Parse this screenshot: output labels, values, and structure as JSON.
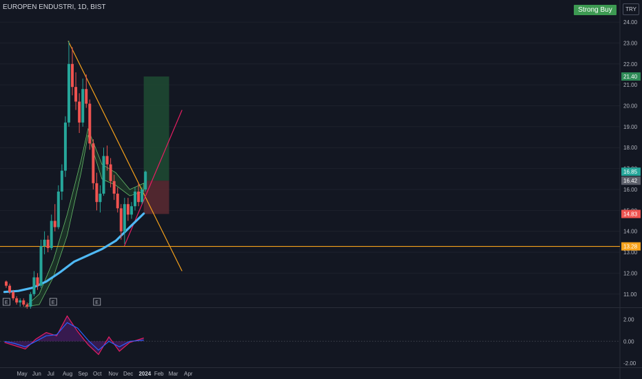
{
  "header": {
    "symbol": "EUROPEN ENDUSTRI, 1D, BIST"
  },
  "signal": {
    "label": "Strong Buy"
  },
  "currency": {
    "label": "TRY"
  },
  "colors": {
    "background": "#131722",
    "up": "#26a69a",
    "down": "#ef5350",
    "trendline": "#f7a21b",
    "support": "#f7a21b",
    "risingline": "#e91e63",
    "ma": "#4fb9f5",
    "target": "#1e4b32",
    "stop": "#5c2a31"
  },
  "chart_data": [
    {
      "type": "candlestick",
      "title": "",
      "x_ticks": [
        "May",
        "Jun",
        "Jul",
        "Aug",
        "Sep",
        "Oct",
        "Nov",
        "Dec",
        "2024",
        "Feb",
        "Mar",
        "Apr"
      ],
      "y_ticks": [
        "11.00",
        "12.00",
        "13.00",
        "14.00",
        "15.00",
        "16.00",
        "17.00",
        "18.00",
        "19.00",
        "20.00",
        "21.00",
        "22.00",
        "23.00",
        "24.00"
      ],
      "ylim": [
        10.4,
        24.2
      ],
      "price_labels": [
        {
          "value": 21.4,
          "text": "21.40",
          "color": "#2e8b57"
        },
        {
          "value": 16.85,
          "text": "16.85",
          "color": "#26a69a"
        },
        {
          "value": 16.42,
          "text": "16.42",
          "color": "#5d606b"
        },
        {
          "value": 14.83,
          "text": "14.83",
          "color": "#ef5350"
        },
        {
          "value": 13.28,
          "text": "13.28",
          "color": "#f7a21b"
        }
      ],
      "support_level": 13.28,
      "earnings_markers": [
        "E",
        "E",
        "E"
      ],
      "earnings_dates": [
        "2023-04-28",
        "2023-07-31",
        "2023-10-27"
      ],
      "trade_box": {
        "entry": 16.42,
        "target": 21.4,
        "stop": 14.83,
        "start": "2024-01-29",
        "end": "2024-03-20"
      },
      "trendline_desc": {
        "from": [
          "2023-08-30",
          23.1
        ],
        "to": [
          "2024-04-15",
          12.1
        ]
      },
      "trendline_rise": {
        "from": [
          "2023-12-21",
          13.3
        ],
        "to": [
          "2024-04-15",
          19.8
        ]
      },
      "ohlc": [
        [
          "2023-04-24",
          11.6,
          11.65,
          11.3,
          11.4
        ],
        [
          "2023-05-01",
          11.4,
          11.5,
          11.0,
          11.1
        ],
        [
          "2023-05-08",
          11.1,
          11.2,
          10.7,
          10.8
        ],
        [
          "2023-05-15",
          10.8,
          10.9,
          10.5,
          10.6
        ],
        [
          "2023-05-22",
          10.6,
          10.8,
          10.4,
          10.7
        ],
        [
          "2023-05-29",
          10.7,
          10.8,
          10.4,
          10.5
        ],
        [
          "2023-06-05",
          10.5,
          10.6,
          10.3,
          10.4
        ],
        [
          "2023-06-12",
          10.4,
          11.1,
          10.3,
          11.0
        ],
        [
          "2023-06-19",
          11.0,
          12.1,
          10.9,
          11.8
        ],
        [
          "2023-06-26",
          11.8,
          12.0,
          11.2,
          11.4
        ],
        [
          "2023-07-03",
          11.4,
          13.6,
          11.3,
          13.3
        ],
        [
          "2023-07-10",
          13.3,
          14.0,
          12.9,
          13.6
        ],
        [
          "2023-07-17",
          13.6,
          13.8,
          13.0,
          13.2
        ],
        [
          "2023-07-24",
          13.2,
          14.8,
          13.1,
          14.5
        ],
        [
          "2023-07-31",
          14.5,
          15.3,
          14.0,
          14.2
        ],
        [
          "2023-08-07",
          14.2,
          16.2,
          14.1,
          15.9
        ],
        [
          "2023-08-14",
          15.9,
          17.2,
          15.5,
          16.9
        ],
        [
          "2023-08-21",
          16.9,
          19.5,
          16.6,
          19.2
        ],
        [
          "2023-08-28",
          19.2,
          23.1,
          19.0,
          22.0
        ],
        [
          "2023-09-04",
          22.0,
          22.8,
          20.5,
          20.9
        ],
        [
          "2023-09-11",
          20.9,
          21.6,
          19.8,
          20.2
        ],
        [
          "2023-09-18",
          20.2,
          20.6,
          18.7,
          19.2
        ],
        [
          "2023-09-25",
          19.2,
          21.3,
          19.0,
          20.8
        ],
        [
          "2023-10-02",
          20.8,
          21.5,
          19.9,
          20.1
        ],
        [
          "2023-10-09",
          20.1,
          20.3,
          17.9,
          18.2
        ],
        [
          "2023-10-16",
          18.2,
          18.4,
          16.0,
          16.3
        ],
        [
          "2023-10-23",
          16.3,
          16.8,
          15.0,
          15.4
        ],
        [
          "2023-10-30",
          15.4,
          16.2,
          14.9,
          15.8
        ],
        [
          "2023-11-06",
          15.8,
          18.0,
          15.7,
          17.6
        ],
        [
          "2023-11-13",
          17.6,
          18.1,
          16.9,
          17.2
        ],
        [
          "2023-11-20",
          17.2,
          17.5,
          16.1,
          16.4
        ],
        [
          "2023-11-27",
          16.4,
          16.7,
          15.5,
          15.8
        ],
        [
          "2023-12-04",
          15.8,
          16.1,
          14.9,
          15.1
        ],
        [
          "2023-12-11",
          15.1,
          15.3,
          13.6,
          14.0
        ],
        [
          "2023-12-18",
          14.0,
          15.6,
          13.4,
          15.3
        ],
        [
          "2023-12-25",
          15.3,
          15.6,
          14.5,
          14.8
        ],
        [
          "2024-01-01",
          14.8,
          15.4,
          14.6,
          15.2
        ],
        [
          "2024-01-08",
          15.2,
          16.1,
          15.0,
          15.9
        ],
        [
          "2024-01-15",
          15.9,
          16.3,
          15.2,
          15.4
        ],
        [
          "2024-01-22",
          15.4,
          16.1,
          15.3,
          16.0
        ],
        [
          "2024-01-29",
          16.0,
          16.9,
          15.9,
          16.85
        ]
      ],
      "ma_series": [
        [
          "2023-04-24",
          11.1
        ],
        [
          "2023-05-22",
          11.15
        ],
        [
          "2023-06-19",
          11.3
        ],
        [
          "2023-07-17",
          11.6
        ],
        [
          "2023-08-14",
          12.05
        ],
        [
          "2023-09-11",
          12.55
        ],
        [
          "2023-10-09",
          12.85
        ],
        [
          "2023-11-06",
          13.15
        ],
        [
          "2023-12-04",
          13.55
        ],
        [
          "2024-01-01",
          14.2
        ],
        [
          "2024-01-29",
          14.85
        ]
      ],
      "cloud_upper": [
        [
          "2023-06-05",
          10.4
        ],
        [
          "2023-07-03",
          11.0
        ],
        [
          "2023-07-31",
          12.6
        ],
        [
          "2023-08-28",
          14.8
        ],
        [
          "2023-09-25",
          17.4
        ],
        [
          "2023-10-09",
          18.9
        ],
        [
          "2023-11-06",
          17.2
        ],
        [
          "2023-12-04",
          16.8
        ],
        [
          "2024-01-01",
          16.0
        ],
        [
          "2024-01-29",
          16.3
        ]
      ],
      "cloud_lower": [
        [
          "2023-06-05",
          10.4
        ],
        [
          "2023-07-03",
          10.5
        ],
        [
          "2023-07-31",
          11.8
        ],
        [
          "2023-08-28",
          13.8
        ],
        [
          "2023-09-25",
          16.8
        ],
        [
          "2023-10-09",
          18.6
        ],
        [
          "2023-11-06",
          16.5
        ],
        [
          "2023-12-04",
          16.2
        ],
        [
          "2024-01-01",
          15.7
        ],
        [
          "2024-01-29",
          15.9
        ]
      ]
    },
    {
      "type": "line",
      "title": "",
      "y_ticks": [
        "2.00",
        "0.00",
        "-2.00"
      ],
      "ylim": [
        -2.3,
        2.9
      ],
      "series": [
        {
          "values": [
            [
              "2023-04-24",
              -0.1
            ],
            [
              "2023-05-15",
              -0.4
            ],
            [
              "2023-06-05",
              -0.7
            ],
            [
              "2023-06-26",
              0.2
            ],
            [
              "2023-07-17",
              0.8
            ],
            [
              "2023-08-07",
              0.5
            ],
            [
              "2023-08-28",
              2.3
            ],
            [
              "2023-09-18",
              0.9
            ],
            [
              "2023-10-09",
              -0.3
            ],
            [
              "2023-10-30",
              -1.2
            ],
            [
              "2023-11-20",
              0.4
            ],
            [
              "2023-12-11",
              -0.9
            ],
            [
              "2024-01-01",
              -0.1
            ],
            [
              "2024-01-29",
              0.3
            ]
          ]
        },
        {
          "values": [
            [
              "2023-04-24",
              0.0
            ],
            [
              "2023-05-15",
              -0.2
            ],
            [
              "2023-06-05",
              -0.5
            ],
            [
              "2023-06-26",
              0.0
            ],
            [
              "2023-07-17",
              0.5
            ],
            [
              "2023-08-07",
              0.6
            ],
            [
              "2023-08-28",
              1.7
            ],
            [
              "2023-09-18",
              1.2
            ],
            [
              "2023-10-09",
              0.1
            ],
            [
              "2023-10-30",
              -0.8
            ],
            [
              "2023-11-20",
              0.0
            ],
            [
              "2023-12-11",
              -0.5
            ],
            [
              "2024-01-01",
              0.0
            ],
            [
              "2024-01-29",
              0.1
            ]
          ]
        }
      ]
    }
  ]
}
